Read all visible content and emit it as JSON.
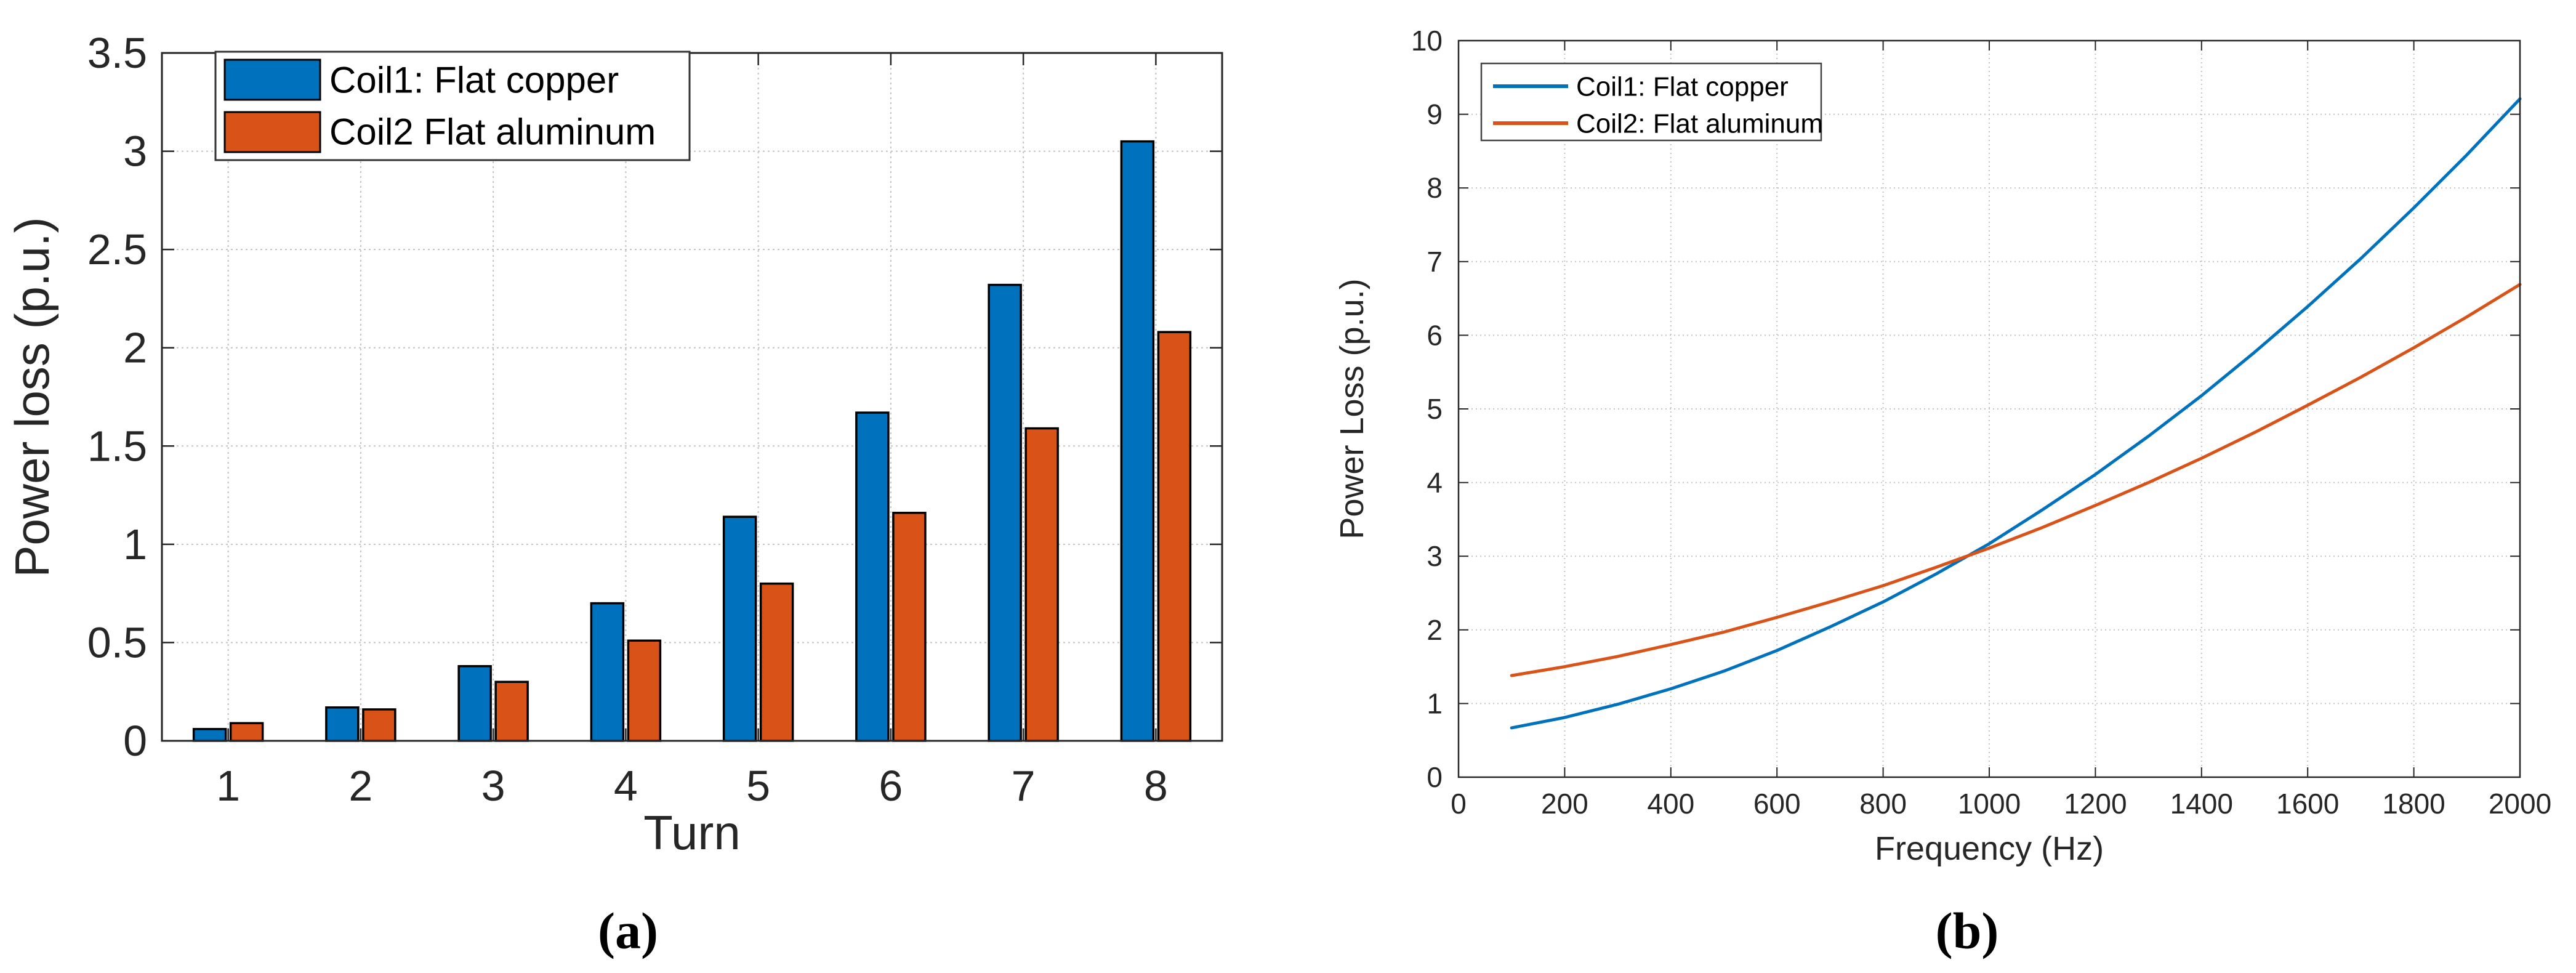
{
  "page": {
    "background": "#ffffff"
  },
  "chart_data": [
    {
      "type": "bar",
      "caption": "(a)",
      "xlabel": "Turn",
      "ylabel": "Power loss (p.u.)",
      "categories": [
        "1",
        "2",
        "3",
        "4",
        "5",
        "6",
        "7",
        "8"
      ],
      "ylim": [
        0,
        3.5
      ],
      "yticks": [
        0,
        0.5,
        1,
        1.5,
        2,
        2.5,
        3,
        3.5
      ],
      "ytick_labels": [
        "0",
        "0.5",
        "1",
        "1.5",
        "2",
        "2.5",
        "3",
        "3.5"
      ],
      "grid": true,
      "legend_position": "top-left",
      "series": [
        {
          "name": "Coil1: Flat copper",
          "color": "#0072BD",
          "values": [
            0.06,
            0.17,
            0.38,
            0.7,
            1.14,
            1.67,
            2.32,
            3.05
          ]
        },
        {
          "name": "Coil2 Flat aluminum",
          "color": "#D95319",
          "values": [
            0.09,
            0.16,
            0.3,
            0.51,
            0.8,
            1.16,
            1.59,
            2.08
          ]
        }
      ]
    },
    {
      "type": "line",
      "caption": "(b)",
      "xlabel": "Frequency (Hz)",
      "ylabel": "Power Loss (p.u.)",
      "xlim": [
        0,
        2000
      ],
      "ylim": [
        0,
        10
      ],
      "xticks": [
        0,
        200,
        400,
        600,
        800,
        1000,
        1200,
        1400,
        1600,
        1800,
        2000
      ],
      "xtick_labels": [
        "0",
        "200",
        "400",
        "600",
        "800",
        "1000",
        "1200",
        "1400",
        "1600",
        "1800",
        "2000"
      ],
      "yticks": [
        0,
        1,
        2,
        3,
        4,
        5,
        6,
        7,
        8,
        9,
        10
      ],
      "ytick_labels": [
        "0",
        "1",
        "2",
        "3",
        "4",
        "5",
        "6",
        "7",
        "8",
        "9",
        "10"
      ],
      "grid": true,
      "legend_position": "top-left",
      "crossing_point": {
        "frequency_hz": 930,
        "power_loss_pu": 3.0
      },
      "series": [
        {
          "name": "Coil1: Flat copper",
          "color": "#0072BD",
          "x": [
            100,
            200,
            300,
            400,
            500,
            600,
            700,
            800,
            900,
            1000,
            1100,
            1200,
            1300,
            1400,
            1500,
            1600,
            1700,
            1800,
            1900,
            2000
          ],
          "y": [
            0.67,
            0.81,
            0.99,
            1.2,
            1.44,
            1.72,
            2.04,
            2.38,
            2.76,
            3.17,
            3.63,
            4.11,
            4.63,
            5.18,
            5.77,
            6.39,
            7.04,
            7.73,
            8.45,
            9.21
          ]
        },
        {
          "name": "Coil2: Flat aluminum",
          "color": "#D95319",
          "x": [
            100,
            200,
            300,
            400,
            500,
            600,
            700,
            800,
            900,
            1000,
            1100,
            1200,
            1300,
            1400,
            1500,
            1600,
            1700,
            1800,
            1900,
            2000
          ],
          "y": [
            1.38,
            1.5,
            1.64,
            1.8,
            1.97,
            2.17,
            2.38,
            2.6,
            2.85,
            3.11,
            3.39,
            3.69,
            4.0,
            4.33,
            4.68,
            5.05,
            5.43,
            5.83,
            6.25,
            6.69
          ]
        }
      ]
    }
  ]
}
